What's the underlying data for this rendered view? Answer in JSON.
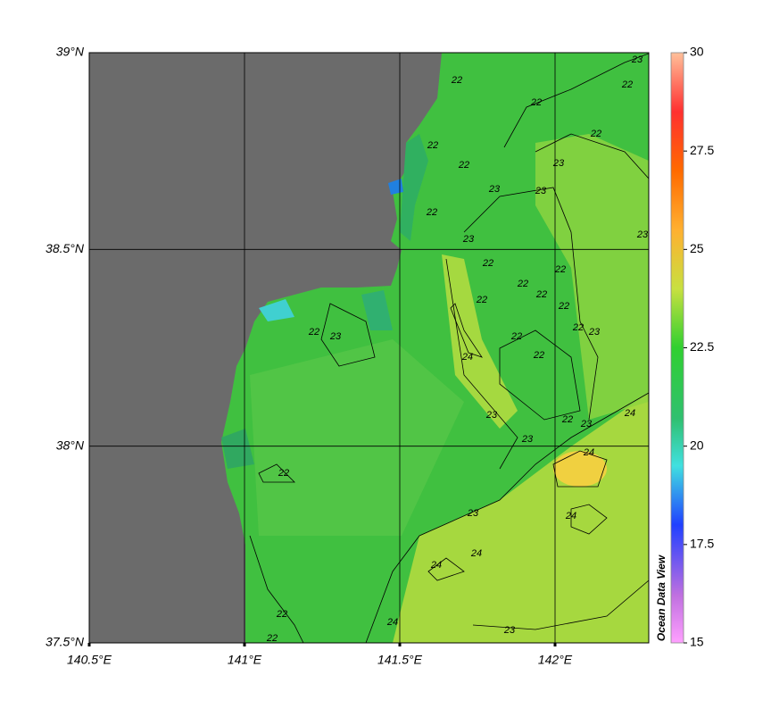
{
  "map": {
    "lon_range": [
      140.5,
      142.3
    ],
    "lat_range": [
      37.5,
      39
    ],
    "lon_ticks": [
      {
        "value": 140.5,
        "label": "140.5°E"
      },
      {
        "value": 141,
        "label": "141°E"
      },
      {
        "value": 141.5,
        "label": "141.5°E"
      },
      {
        "value": 142,
        "label": "142°E"
      }
    ],
    "lat_ticks": [
      {
        "value": 37.5,
        "label": "37.5°N"
      },
      {
        "value": 38,
        "label": "38°N"
      },
      {
        "value": 38.5,
        "label": "38.5°N"
      },
      {
        "value": 39,
        "label": "39°N"
      }
    ],
    "grid": true,
    "land_color": "#6b6b6b",
    "contour_labels": [
      23,
      22,
      22,
      22,
      22,
      22,
      22,
      23,
      23,
      23,
      22,
      23,
      23,
      22,
      22,
      22,
      22,
      22,
      22,
      22,
      23,
      22,
      23,
      22,
      24,
      22,
      23,
      22,
      23,
      24,
      23,
      24,
      22,
      24,
      23,
      24,
      24,
      22,
      24,
      23,
      22
    ],
    "watermark": "Ocean Data View"
  },
  "colorbar": {
    "range": [
      15,
      30
    ],
    "ticks": [
      30,
      27.5,
      25,
      22.5,
      20,
      17.5,
      15
    ]
  }
}
